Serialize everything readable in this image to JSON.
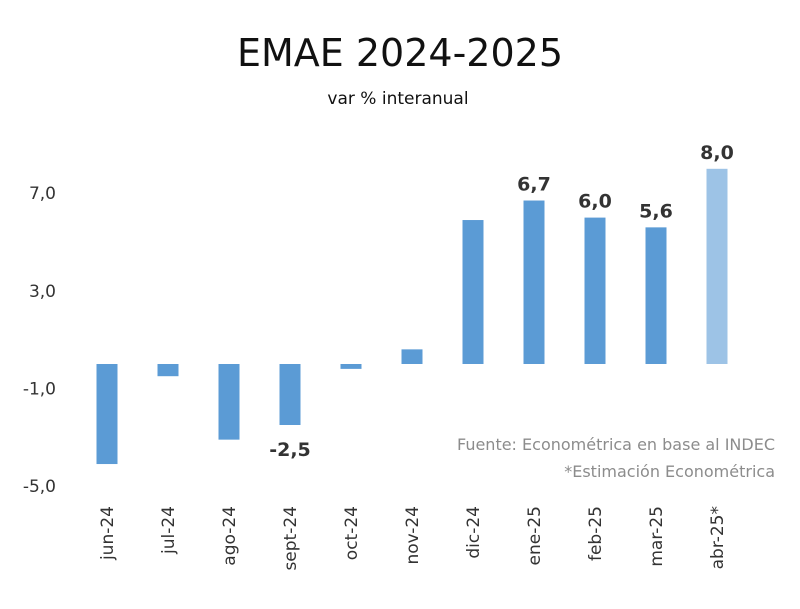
{
  "chart_data": {
    "type": "bar",
    "title": "EMAE 2024-2025",
    "subtitle": "var % interanual",
    "categories": [
      "jun-24",
      "jul-24",
      "ago-24",
      "sept-24",
      "oct-24",
      "nov-24",
      "dic-24",
      "ene-25",
      "feb-25",
      "mar-25",
      "abr-25*"
    ],
    "values": [
      -4.1,
      -0.5,
      -3.1,
      -2.5,
      -0.2,
      0.6,
      5.9,
      6.7,
      6.0,
      5.6,
      8.0
    ],
    "data_labels": [
      "",
      "",
      "",
      "-2,5",
      "",
      "",
      "",
      "6,7",
      "6,0",
      "5,6",
      "8,0"
    ],
    "yticks": [
      7.0,
      3.0,
      -1.0,
      -5.0
    ],
    "ytick_labels": [
      "7,0",
      "3,0",
      "-1,0",
      "-5,0"
    ],
    "ylim": [
      -5.0,
      8.0
    ],
    "grid": false,
    "legend": "none",
    "colors": {
      "bar": "#5b9bd5",
      "estimate_bar": "#9dc3e6"
    },
    "estimate_index": 10,
    "notes": [
      "Fuente: Econométrica en base al INDEC",
      "*Estimación Econométrica"
    ]
  }
}
